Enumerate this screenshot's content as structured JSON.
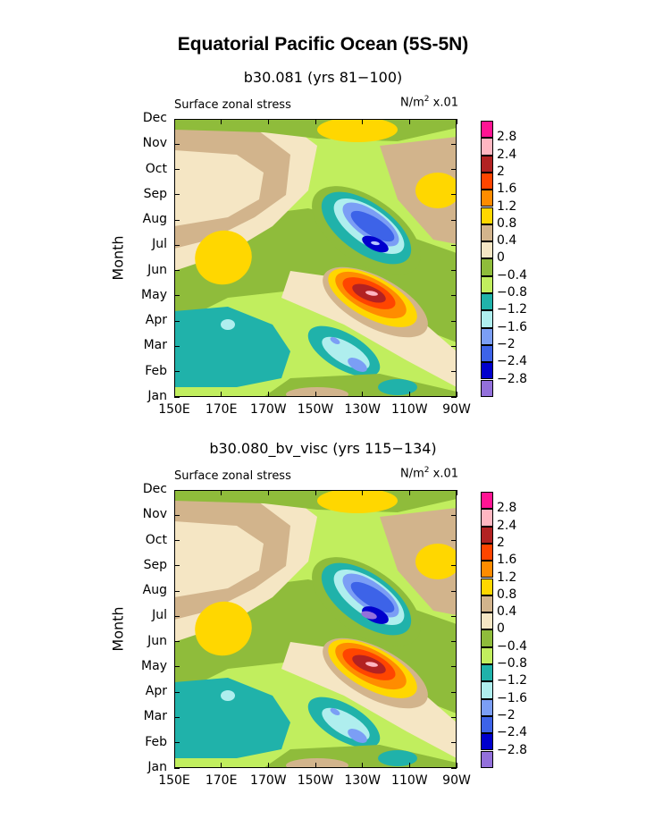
{
  "title": "Equatorial Pacific Ocean (5S-5N)",
  "colorbar": {
    "labels": [
      "2.8",
      "2.4",
      "2",
      "1.6",
      "1.2",
      "0.8",
      "0.4",
      "0",
      "−0.4",
      "−0.8",
      "−1.2",
      "−1.6",
      "−2",
      "−2.4",
      "−2.8"
    ],
    "colors": [
      "#ff1493",
      "#ffb6c1",
      "#b22222",
      "#ff4500",
      "#ff8c00",
      "#ffd700",
      "#d2b48c",
      "#f5e6c4",
      "#8fbc3b",
      "#c1ee5e",
      "#20b2aa",
      "#afeeee",
      "#7b9ef5",
      "#3d63e8",
      "#0000cd",
      "#9370db"
    ]
  },
  "panels": [
    {
      "title": "b30.081 (yrs 81−100)",
      "subtitle_left": "Surface zonal stress",
      "units_main": "N/m",
      "units_sup": "2",
      "units_tail": " x.01",
      "ylabel": "Month",
      "y_ticks": [
        "Dec",
        "Nov",
        "Oct",
        "Sep",
        "Aug",
        "Jul",
        "Jun",
        "May",
        "Apr",
        "Mar",
        "Feb",
        "Jan"
      ],
      "x_ticks": [
        "150E",
        "170E",
        "170W",
        "150W",
        "130W",
        "110W",
        "90W"
      ]
    },
    {
      "title": "b30.080_bv_visc (yrs 115−134)",
      "subtitle_left": "Surface zonal stress",
      "units_main": "N/m",
      "units_sup": "2",
      "units_tail": " x.01",
      "ylabel": "Month",
      "y_ticks": [
        "Dec",
        "Nov",
        "Oct",
        "Sep",
        "Aug",
        "Jul",
        "Jun",
        "May",
        "Apr",
        "Mar",
        "Feb",
        "Jan"
      ],
      "x_ticks": [
        "150E",
        "170E",
        "170W",
        "150W",
        "130W",
        "110W",
        "90W"
      ]
    }
  ],
  "chart_data": [
    {
      "type": "heatmap",
      "title": "b30.081 (yrs 81−100)",
      "xlabel": "",
      "ylabel": "Month",
      "x_categories": [
        "150E",
        "170E",
        "170W",
        "150W",
        "130W",
        "110W",
        "90W"
      ],
      "y_categories": [
        "Jan",
        "Feb",
        "Mar",
        "Apr",
        "May",
        "Jun",
        "Jul",
        "Aug",
        "Sep",
        "Oct",
        "Nov",
        "Dec"
      ],
      "contour_levels": [
        -2.8,
        -2.4,
        -2,
        -1.6,
        -1.2,
        -0.8,
        -0.4,
        0,
        0.4,
        0.8,
        1.2,
        1.6,
        2,
        2.4,
        2.8
      ],
      "features": [
        {
          "lon": "130W",
          "month": "May",
          "value": 2.2
        },
        {
          "lon": "128W",
          "month": "Jul",
          "value": -2.6
        },
        {
          "lon": "165E",
          "month": "Mar",
          "value": -1.0
        },
        {
          "lon": "140W",
          "month": "Mar",
          "value": -1.4
        },
        {
          "lon": "170E",
          "month": "Jul",
          "value": 0.9
        }
      ]
    },
    {
      "type": "heatmap",
      "title": "b30.080_bv_visc (yrs 115−134)",
      "xlabel": "",
      "ylabel": "Month",
      "x_categories": [
        "150E",
        "170E",
        "170W",
        "150W",
        "130W",
        "110W",
        "90W"
      ],
      "y_categories": [
        "Jan",
        "Feb",
        "Mar",
        "Apr",
        "May",
        "Jun",
        "Jul",
        "Aug",
        "Sep",
        "Oct",
        "Nov",
        "Dec"
      ],
      "contour_levels": [
        -2.8,
        -2.4,
        -2,
        -1.6,
        -1.2,
        -0.8,
        -0.4,
        0,
        0.4,
        0.8,
        1.2,
        1.6,
        2,
        2.4,
        2.8
      ],
      "features": [
        {
          "lon": "130W",
          "month": "May",
          "value": 2.1
        },
        {
          "lon": "128W",
          "month": "Jul",
          "value": -2.9
        },
        {
          "lon": "165E",
          "month": "Mar",
          "value": -1.0
        },
        {
          "lon": "140W",
          "month": "Mar",
          "value": -1.3
        },
        {
          "lon": "170E",
          "month": "Jul",
          "value": 0.9
        }
      ]
    }
  ]
}
